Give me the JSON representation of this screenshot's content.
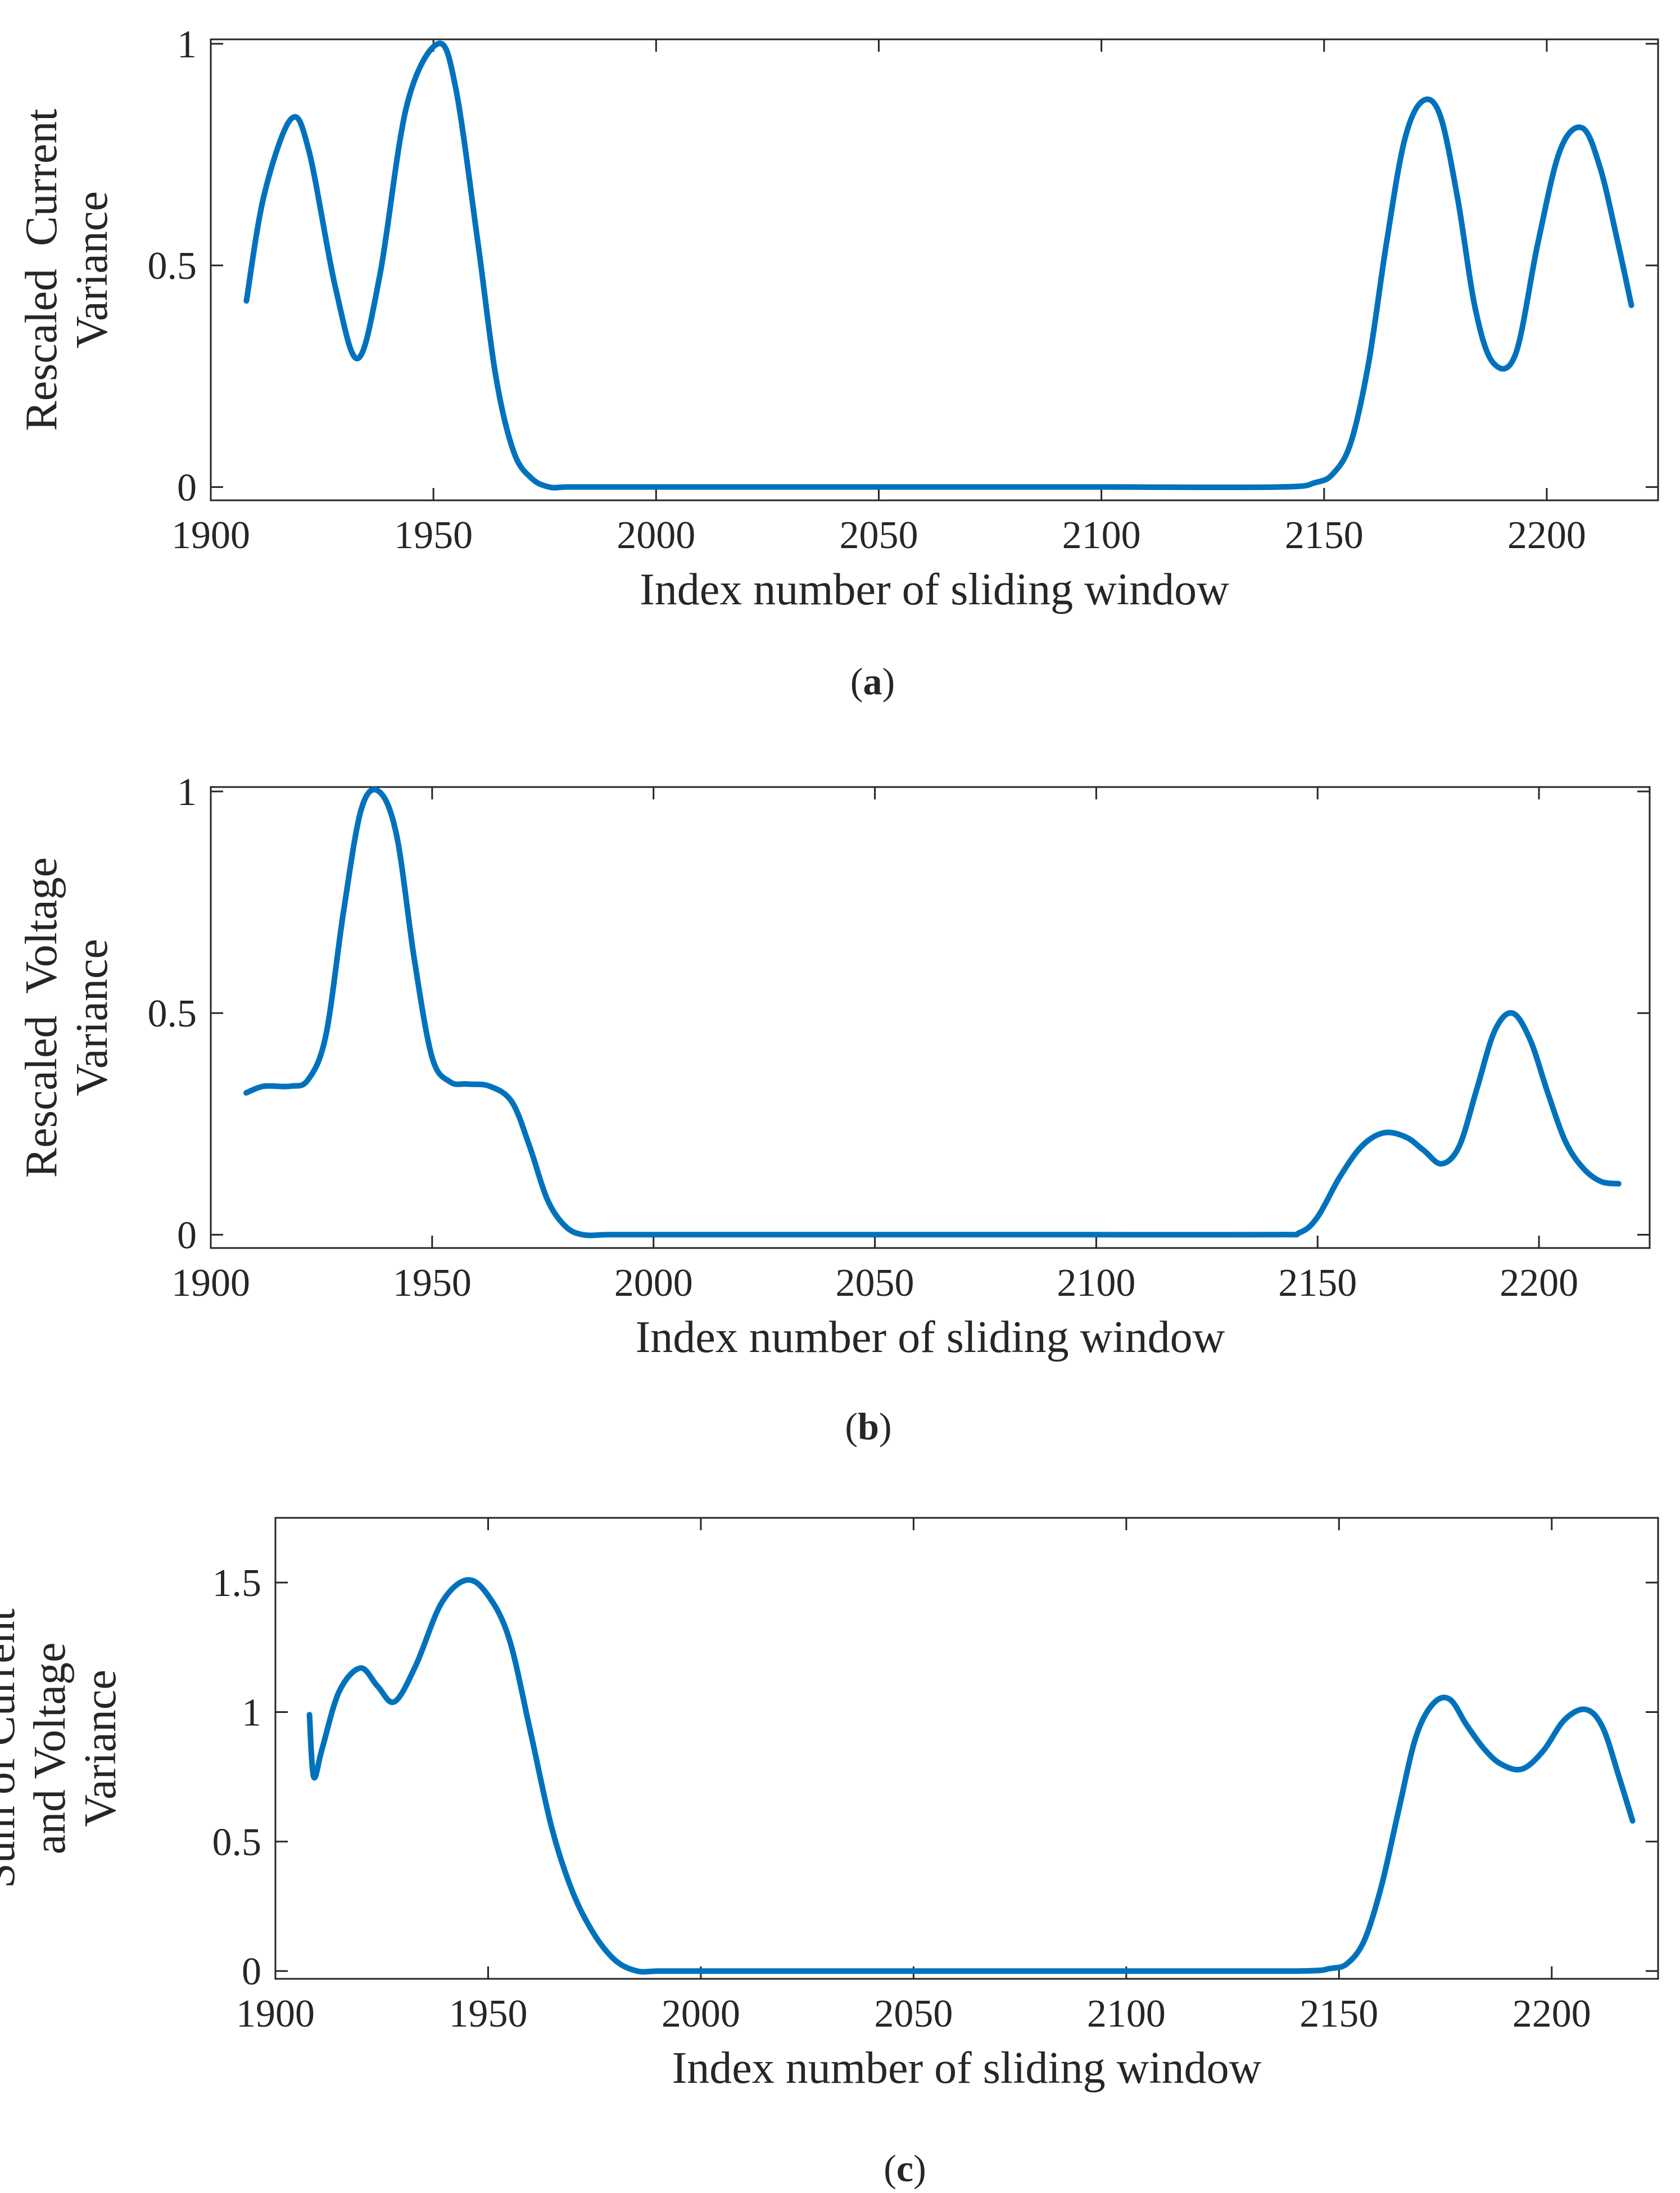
{
  "chart_data": [
    {
      "type": "line",
      "caption": "a",
      "title": "",
      "xlabel": "Index number of sliding window",
      "ylabel_lines": [
        "Rescaled  Current",
        "Variance"
      ],
      "xlim": [
        1900,
        2225
      ],
      "ylim": [
        -0.03,
        1.01
      ],
      "xticks": [
        1900,
        1950,
        2000,
        2050,
        2100,
        2150,
        2200
      ],
      "yticks": [
        0,
        0.5,
        1
      ],
      "ytick_labels": [
        "0",
        "0.5",
        "1"
      ],
      "grid": false,
      "series": [
        {
          "name": "Rescaled Current Variance",
          "color": "#0072BD",
          "x": [
            1908,
            1912,
            1918,
            1922,
            1928,
            1933,
            1938,
            1944,
            1951,
            1955,
            1960,
            1964,
            1968,
            1972,
            1976,
            1980,
            1990,
            2000,
            2050,
            2100,
            2140,
            2148,
            2152,
            2156,
            2160,
            2164,
            2168,
            2172,
            2176,
            2180,
            2184,
            2188,
            2193,
            2198,
            2203,
            2208,
            2212,
            2216,
            2219
          ],
          "values": [
            0.42,
            0.66,
            0.83,
            0.76,
            0.45,
            0.29,
            0.48,
            0.86,
            1.0,
            0.9,
            0.55,
            0.25,
            0.08,
            0.02,
            0.0,
            0.0,
            0.0,
            0.0,
            0.0,
            0.0,
            0.0,
            0.01,
            0.03,
            0.1,
            0.28,
            0.55,
            0.78,
            0.87,
            0.84,
            0.65,
            0.4,
            0.28,
            0.3,
            0.55,
            0.76,
            0.81,
            0.72,
            0.55,
            0.41
          ]
        }
      ]
    },
    {
      "type": "line",
      "caption": "b",
      "title": "",
      "xlabel": "Index number of sliding window",
      "ylabel_lines": [
        "Rescaled  Voltage",
        "Variance"
      ],
      "xlim": [
        1900,
        2225
      ],
      "ylim": [
        -0.03,
        1.01
      ],
      "xticks": [
        1900,
        1950,
        2000,
        2050,
        2100,
        2150,
        2200
      ],
      "yticks": [
        0,
        0.5,
        1
      ],
      "ytick_labels": [
        "0",
        "0.5",
        "1"
      ],
      "grid": false,
      "series": [
        {
          "name": "Rescaled Voltage Variance",
          "color": "#0072BD",
          "x": [
            1908,
            1912,
            1918,
            1922,
            1926,
            1930,
            1934,
            1938,
            1942,
            1946,
            1950,
            1954,
            1958,
            1963,
            1968,
            1972,
            1976,
            1980,
            1984,
            1990,
            2000,
            2050,
            2100,
            2140,
            2146,
            2150,
            2155,
            2160,
            2165,
            2170,
            2174,
            2178,
            2182,
            2186,
            2190,
            2194,
            2198,
            2202,
            2206,
            2210,
            2214,
            2218
          ],
          "values": [
            0.32,
            0.335,
            0.335,
            0.35,
            0.45,
            0.73,
            0.96,
            1.0,
            0.9,
            0.62,
            0.4,
            0.345,
            0.34,
            0.335,
            0.3,
            0.2,
            0.08,
            0.02,
            0.0,
            0.0,
            0.0,
            0.0,
            0.0,
            0.0,
            0.005,
            0.04,
            0.13,
            0.2,
            0.23,
            0.22,
            0.19,
            0.16,
            0.2,
            0.33,
            0.46,
            0.5,
            0.44,
            0.32,
            0.21,
            0.15,
            0.12,
            0.115
          ]
        }
      ]
    },
    {
      "type": "line",
      "caption": "c",
      "title": "",
      "xlabel": "Index number of sliding window",
      "ylabel_lines": [
        "Sum of Current",
        "and Voltage",
        "Variance"
      ],
      "xlim": [
        1900,
        2225
      ],
      "ylim": [
        -0.03,
        1.75
      ],
      "xticks": [
        1900,
        1950,
        2000,
        2050,
        2100,
        2150,
        2200
      ],
      "yticks": [
        0,
        0.5,
        1,
        1.5
      ],
      "ytick_labels": [
        "0",
        "0.5",
        "1",
        "1.5"
      ],
      "grid": false,
      "series": [
        {
          "name": "Sum of Current and Voltage Variance",
          "color": "#0072BD",
          "x": [
            1908,
            1909,
            1911,
            1915,
            1920,
            1924,
            1928,
            1933,
            1939,
            1945,
            1950,
            1955,
            1960,
            1965,
            1970,
            1975,
            1980,
            1985,
            1990,
            2000,
            2050,
            2100,
            2140,
            2148,
            2152,
            2156,
            2160,
            2164,
            2168,
            2172,
            2176,
            2180,
            2184,
            2188,
            2193,
            2198,
            2203,
            2208,
            2212,
            2216,
            2219
          ],
          "values": [
            0.99,
            0.75,
            0.86,
            1.08,
            1.17,
            1.1,
            1.04,
            1.18,
            1.42,
            1.51,
            1.45,
            1.28,
            0.92,
            0.55,
            0.3,
            0.14,
            0.04,
            0.0,
            0.0,
            0.0,
            0.0,
            0.0,
            0.0,
            0.01,
            0.03,
            0.12,
            0.33,
            0.62,
            0.9,
            1.03,
            1.05,
            0.95,
            0.86,
            0.8,
            0.78,
            0.85,
            0.97,
            1.01,
            0.94,
            0.74,
            0.58
          ]
        }
      ]
    }
  ]
}
